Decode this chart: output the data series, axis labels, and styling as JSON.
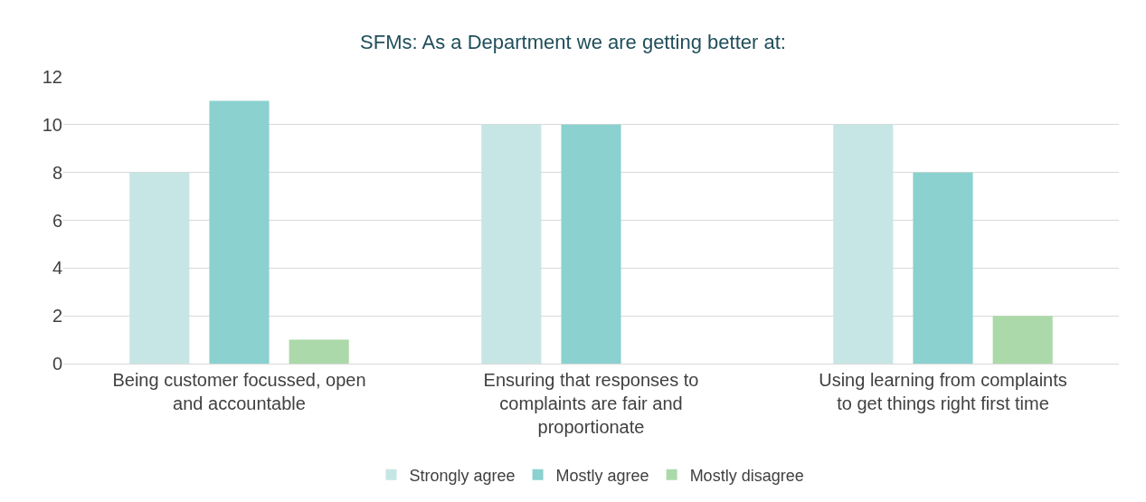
{
  "chart_data": {
    "type": "bar",
    "title": "SFMs: As a Department we are getting better at:",
    "categories": [
      "Being customer focussed, open and accountable",
      "Ensuring that responses to complaints are fair and proportionate",
      "Using learning from complaints to get things right first time"
    ],
    "series": [
      {
        "name": "Strongly agree",
        "color": "#c5e6e4",
        "values": [
          8,
          10,
          10
        ]
      },
      {
        "name": "Mostly agree",
        "color": "#8ad1cf",
        "values": [
          11,
          10,
          8
        ]
      },
      {
        "name": "Mostly disagree",
        "color": "#acd9a9",
        "values": [
          1,
          0,
          2
        ]
      }
    ],
    "ylim": [
      0,
      12
    ],
    "yticks": [
      0,
      2,
      4,
      6,
      8,
      10,
      12
    ],
    "grid": "y",
    "legend": "bottom"
  }
}
